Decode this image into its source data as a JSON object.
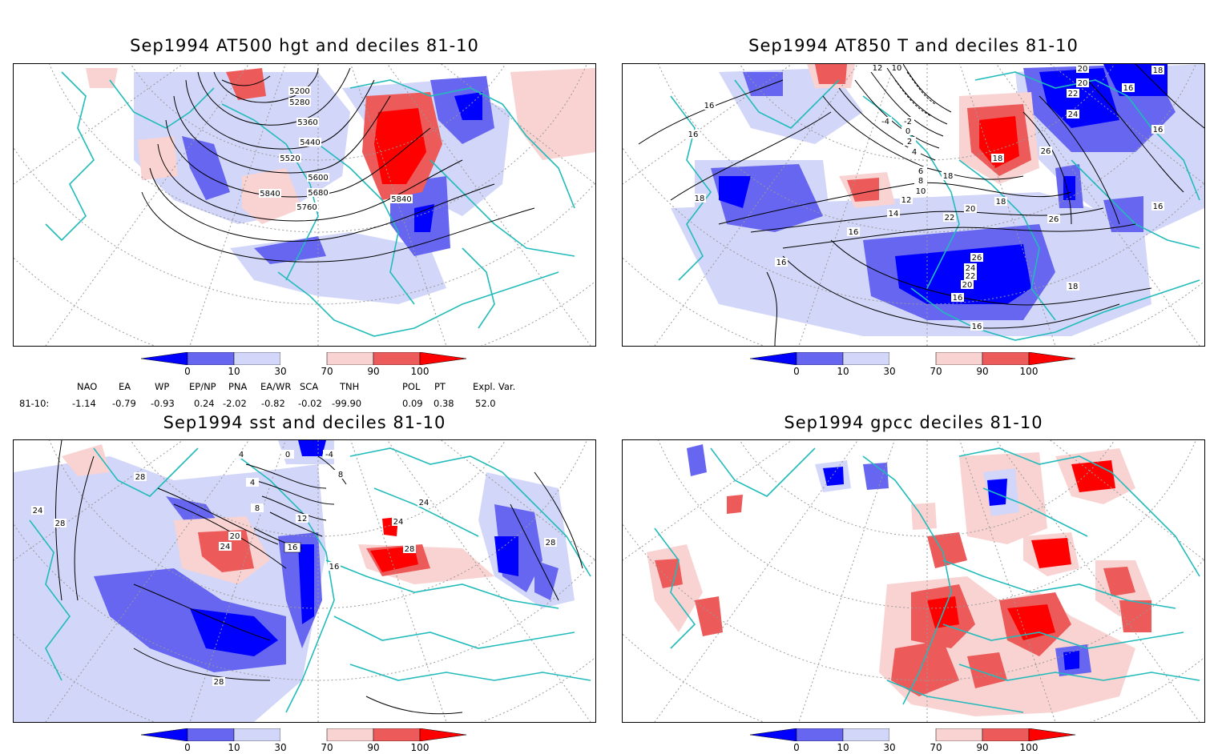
{
  "panels": [
    {
      "id": "p1",
      "title": "Sep1994 AT500 hgt and deciles 81-10",
      "contour_labels": [
        "5200",
        "5280",
        "5360",
        "5440",
        "5520",
        "5600",
        "5680",
        "5760",
        "5840",
        "5840"
      ]
    },
    {
      "id": "p2",
      "title": "Sep1994 AT850 T and deciles 81-10",
      "contour_labels": [
        "12",
        "10",
        "20",
        "20",
        "22",
        "16",
        "24",
        "26",
        "18",
        "16",
        "16",
        "18",
        "18",
        "16",
        "18",
        "16",
        "14",
        "12",
        "10",
        "8",
        "6",
        "4",
        "2",
        "0",
        "-2",
        "-4",
        "22",
        "20",
        "16",
        "18",
        "26",
        "26",
        "24",
        "22",
        "20",
        "16",
        "16",
        "16",
        "18"
      ]
    },
    {
      "id": "p3",
      "title": "Sep1994 sst and deciles 81-10",
      "contour_labels": [
        "4",
        "0",
        "-4",
        "8",
        "4",
        "12",
        "8",
        "16",
        "20",
        "24",
        "28",
        "24",
        "28",
        "28",
        "16",
        "24",
        "28",
        "24",
        "28"
      ]
    },
    {
      "id": "p4",
      "title": "Sep1994 gpcc deciles 81-10",
      "contour_labels": []
    }
  ],
  "colorbar": {
    "ticks": [
      "0",
      "10",
      "30",
      "70",
      "90",
      "100"
    ],
    "colors": [
      "#0000ff",
      "#6666f0",
      "#d2d6f8",
      "#ffffff",
      "#f9d2d2",
      "#ec5a5a",
      "#ff0000"
    ]
  },
  "indices": {
    "headers": [
      "NAO",
      "EA",
      "WP",
      "EP/NP",
      "PNA",
      "EA/WR",
      "SCA",
      "TNH",
      "POL",
      "PT",
      "Expl. Var."
    ],
    "row_label": "81-10:",
    "values": [
      "-1.14",
      "-0.79",
      "-0.93",
      "0.24",
      "-2.02",
      "-0.82",
      "-0.02",
      "-99.90",
      "0.09",
      "0.38",
      "52.0"
    ]
  },
  "colors": {
    "coast": "#22bbbb",
    "grid": "#999999",
    "contour": "#000000"
  }
}
